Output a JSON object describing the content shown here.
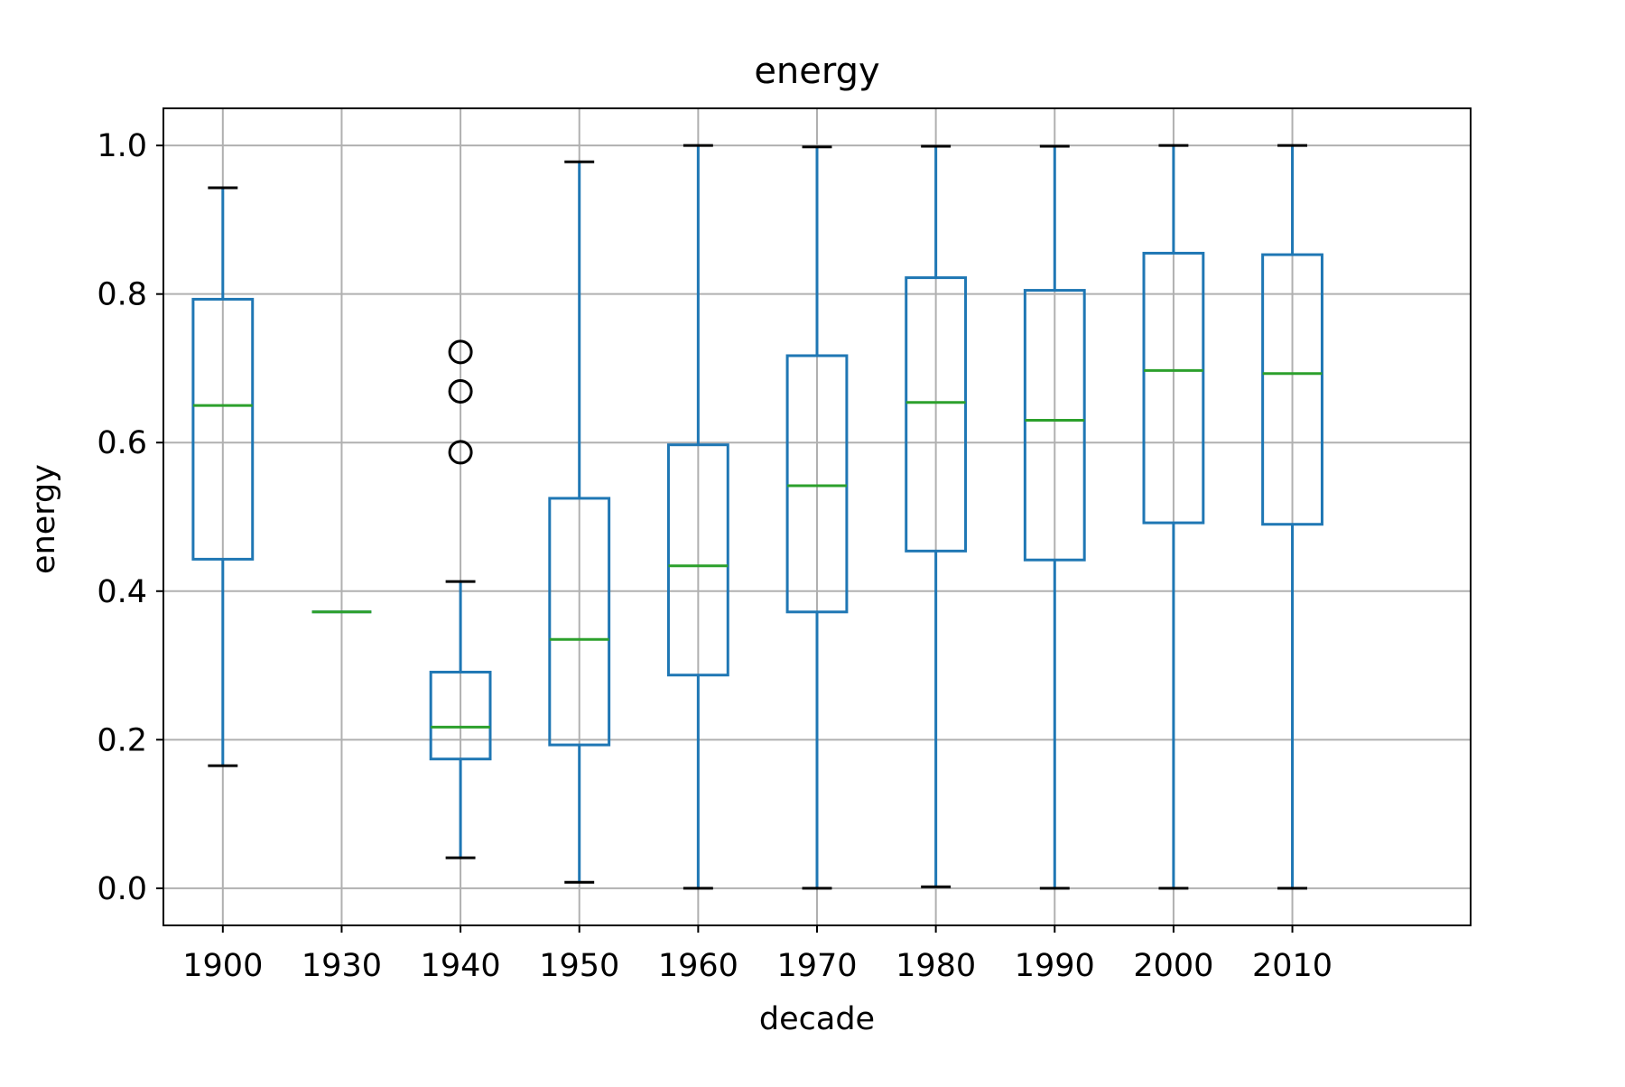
{
  "chart_data": {
    "type": "boxplot",
    "title": "energy",
    "xlabel": "decade",
    "ylabel": "energy",
    "ylim": [
      -0.05,
      1.05
    ],
    "yticks": [
      "0.0",
      "0.2",
      "0.4",
      "0.6",
      "0.8",
      "1.0"
    ],
    "grid": true,
    "categories": [
      "1900",
      "1930",
      "1940",
      "1950",
      "1960",
      "1970",
      "1980",
      "1990",
      "2000",
      "2010"
    ],
    "boxes": [
      {
        "label": "1900",
        "whisker_low": 0.165,
        "q1": 0.443,
        "median": 0.65,
        "q3": 0.793,
        "whisker_high": 0.943,
        "outliers": []
      },
      {
        "label": "1930",
        "whisker_low": 0.372,
        "q1": 0.372,
        "median": 0.372,
        "q3": 0.372,
        "whisker_high": 0.372,
        "outliers": []
      },
      {
        "label": "1940",
        "whisker_low": 0.041,
        "q1": 0.174,
        "median": 0.217,
        "q3": 0.291,
        "whisker_high": 0.413,
        "outliers": [
          0.587,
          0.669,
          0.722
        ]
      },
      {
        "label": "1950",
        "whisker_low": 0.008,
        "q1": 0.193,
        "median": 0.335,
        "q3": 0.525,
        "whisker_high": 0.978,
        "outliers": []
      },
      {
        "label": "1960",
        "whisker_low": 0.0,
        "q1": 0.287,
        "median": 0.434,
        "q3": 0.597,
        "whisker_high": 1.0,
        "outliers": []
      },
      {
        "label": "1970",
        "whisker_low": 0.0,
        "q1": 0.372,
        "median": 0.542,
        "q3": 0.717,
        "whisker_high": 0.998,
        "outliers": []
      },
      {
        "label": "1980",
        "whisker_low": 0.002,
        "q1": 0.454,
        "median": 0.654,
        "q3": 0.822,
        "whisker_high": 0.999,
        "outliers": []
      },
      {
        "label": "1990",
        "whisker_low": 0.0,
        "q1": 0.442,
        "median": 0.63,
        "q3": 0.805,
        "whisker_high": 0.999,
        "outliers": []
      },
      {
        "label": "2000",
        "whisker_low": 0.0,
        "q1": 0.492,
        "median": 0.697,
        "q3": 0.855,
        "whisker_high": 1.0,
        "outliers": []
      },
      {
        "label": "2010",
        "whisker_low": 0.0,
        "q1": 0.49,
        "median": 0.693,
        "q3": 0.853,
        "whisker_high": 1.0,
        "outliers": []
      }
    ],
    "colors": {
      "box": "#1f77b4",
      "median": "#2ca02c",
      "cap": "#000000",
      "outlier": "#000000",
      "grid": "#b0b0b0",
      "axes": "#000000"
    }
  }
}
